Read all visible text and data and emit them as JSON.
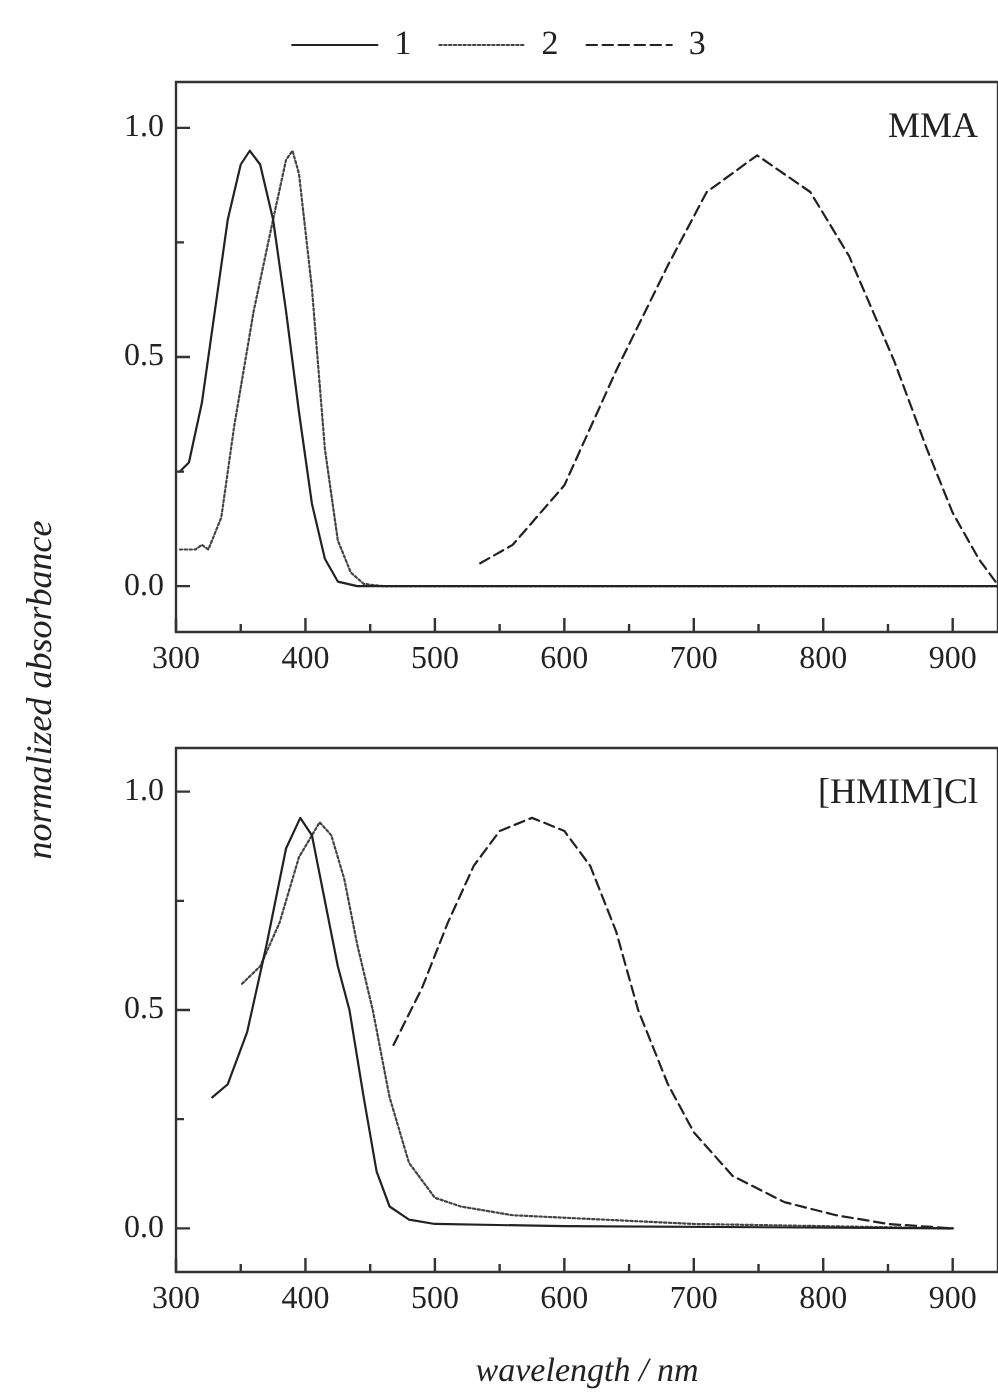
{
  "chart_data": [
    {
      "type": "line",
      "ylabel": "normalized absorbance",
      "annotations": [
        "MMA"
      ],
      "legend": "top",
      "xlim": [
        300,
        935
      ],
      "ylim": [
        -0.1,
        1.1
      ],
      "xticks": [
        300,
        {
          "value": 350,
          "label": null
        },
        400,
        {
          "value": 450,
          "label": null
        },
        500,
        {
          "value": 550,
          "label": null
        },
        600,
        {
          "value": 650,
          "label": null
        },
        700,
        {
          "value": 750,
          "label": null
        },
        800,
        {
          "value": 850,
          "label": null
        },
        900
      ],
      "yticks": [
        {
          "value": 0,
          "label": "0.0"
        },
        {
          "value": 0.25,
          "label": null
        },
        0.5,
        {
          "value": 0.75,
          "label": null
        },
        {
          "value": 1,
          "label": "1.0"
        }
      ],
      "series": [
        {
          "name": "1",
          "color": "#222222",
          "line_style": "solid",
          "x": [
            303,
            310,
            320,
            330,
            340,
            350,
            357,
            365,
            375,
            385,
            395,
            405,
            415,
            425,
            440,
            935
          ],
          "values": [
            0.25,
            0.27,
            0.4,
            0.6,
            0.8,
            0.92,
            0.95,
            0.92,
            0.8,
            0.6,
            0.38,
            0.18,
            0.06,
            0.01,
            0,
            0
          ]
        },
        {
          "name": "2",
          "color": "#444444",
          "line_style": "dotted",
          "x": [
            303,
            315,
            320,
            325,
            335,
            345,
            360,
            375,
            385,
            390,
            395,
            405,
            415,
            425,
            435,
            445,
            460,
            935
          ],
          "values": [
            0.08,
            0.08,
            0.09,
            0.08,
            0.15,
            0.35,
            0.6,
            0.8,
            0.93,
            0.95,
            0.9,
            0.65,
            0.3,
            0.1,
            0.03,
            0.005,
            0,
            0
          ]
        },
        {
          "name": "3",
          "color": "#222222",
          "line_style": "dashed",
          "x": [
            535,
            560,
            600,
            640,
            680,
            710,
            749,
            790,
            820,
            855,
            880,
            900,
            920,
            933
          ],
          "values": [
            0.05,
            0.09,
            0.22,
            0.47,
            0.7,
            0.86,
            0.94,
            0.86,
            0.72,
            0.49,
            0.3,
            0.16,
            0.06,
            0.01
          ]
        }
      ]
    },
    {
      "type": "line",
      "xlabel": "wavelength / nm",
      "annotations": [
        "[HMIM]Cl"
      ],
      "xlim": [
        300,
        935
      ],
      "ylim": [
        -0.1,
        1.1
      ],
      "xticks": [
        300,
        {
          "value": 350,
          "label": null
        },
        400,
        {
          "value": 450,
          "label": null
        },
        500,
        {
          "value": 550,
          "label": null
        },
        600,
        {
          "value": 650,
          "label": null
        },
        700,
        {
          "value": 750,
          "label": null
        },
        800,
        {
          "value": 850,
          "label": null
        },
        900
      ],
      "yticks": [
        {
          "value": 0,
          "label": "0.0"
        },
        {
          "value": 0.25,
          "label": null
        },
        0.5,
        {
          "value": 0.75,
          "label": null
        },
        {
          "value": 1,
          "label": "1.0"
        }
      ],
      "series": [
        {
          "name": "1",
          "color": "#222222",
          "line_style": "solid",
          "x": [
            328,
            340,
            355,
            370,
            385,
            396,
            405,
            415,
            425,
            434,
            445,
            455,
            465,
            480,
            500,
            600,
            900
          ],
          "values": [
            0.3,
            0.33,
            0.45,
            0.65,
            0.87,
            0.94,
            0.9,
            0.75,
            0.6,
            0.5,
            0.3,
            0.13,
            0.05,
            0.02,
            0.01,
            0.005,
            0
          ]
        },
        {
          "name": "2",
          "color": "#444444",
          "line_style": "dotted",
          "x": [
            351,
            365,
            380,
            395,
            411,
            420,
            430,
            440,
            452,
            465,
            480,
            500,
            520,
            560,
            700,
            900
          ],
          "values": [
            0.56,
            0.6,
            0.7,
            0.85,
            0.93,
            0.9,
            0.8,
            0.65,
            0.5,
            0.3,
            0.15,
            0.07,
            0.05,
            0.03,
            0.01,
            0
          ]
        },
        {
          "name": "3",
          "color": "#222222",
          "line_style": "dashed",
          "x": [
            468,
            490,
            510,
            530,
            550,
            575,
            600,
            620,
            640,
            657,
            680,
            700,
            730,
            770,
            810,
            850,
            900
          ],
          "values": [
            0.42,
            0.55,
            0.7,
            0.83,
            0.91,
            0.94,
            0.91,
            0.83,
            0.68,
            0.5,
            0.33,
            0.22,
            0.12,
            0.06,
            0.03,
            0.01,
            0
          ]
        }
      ]
    }
  ]
}
